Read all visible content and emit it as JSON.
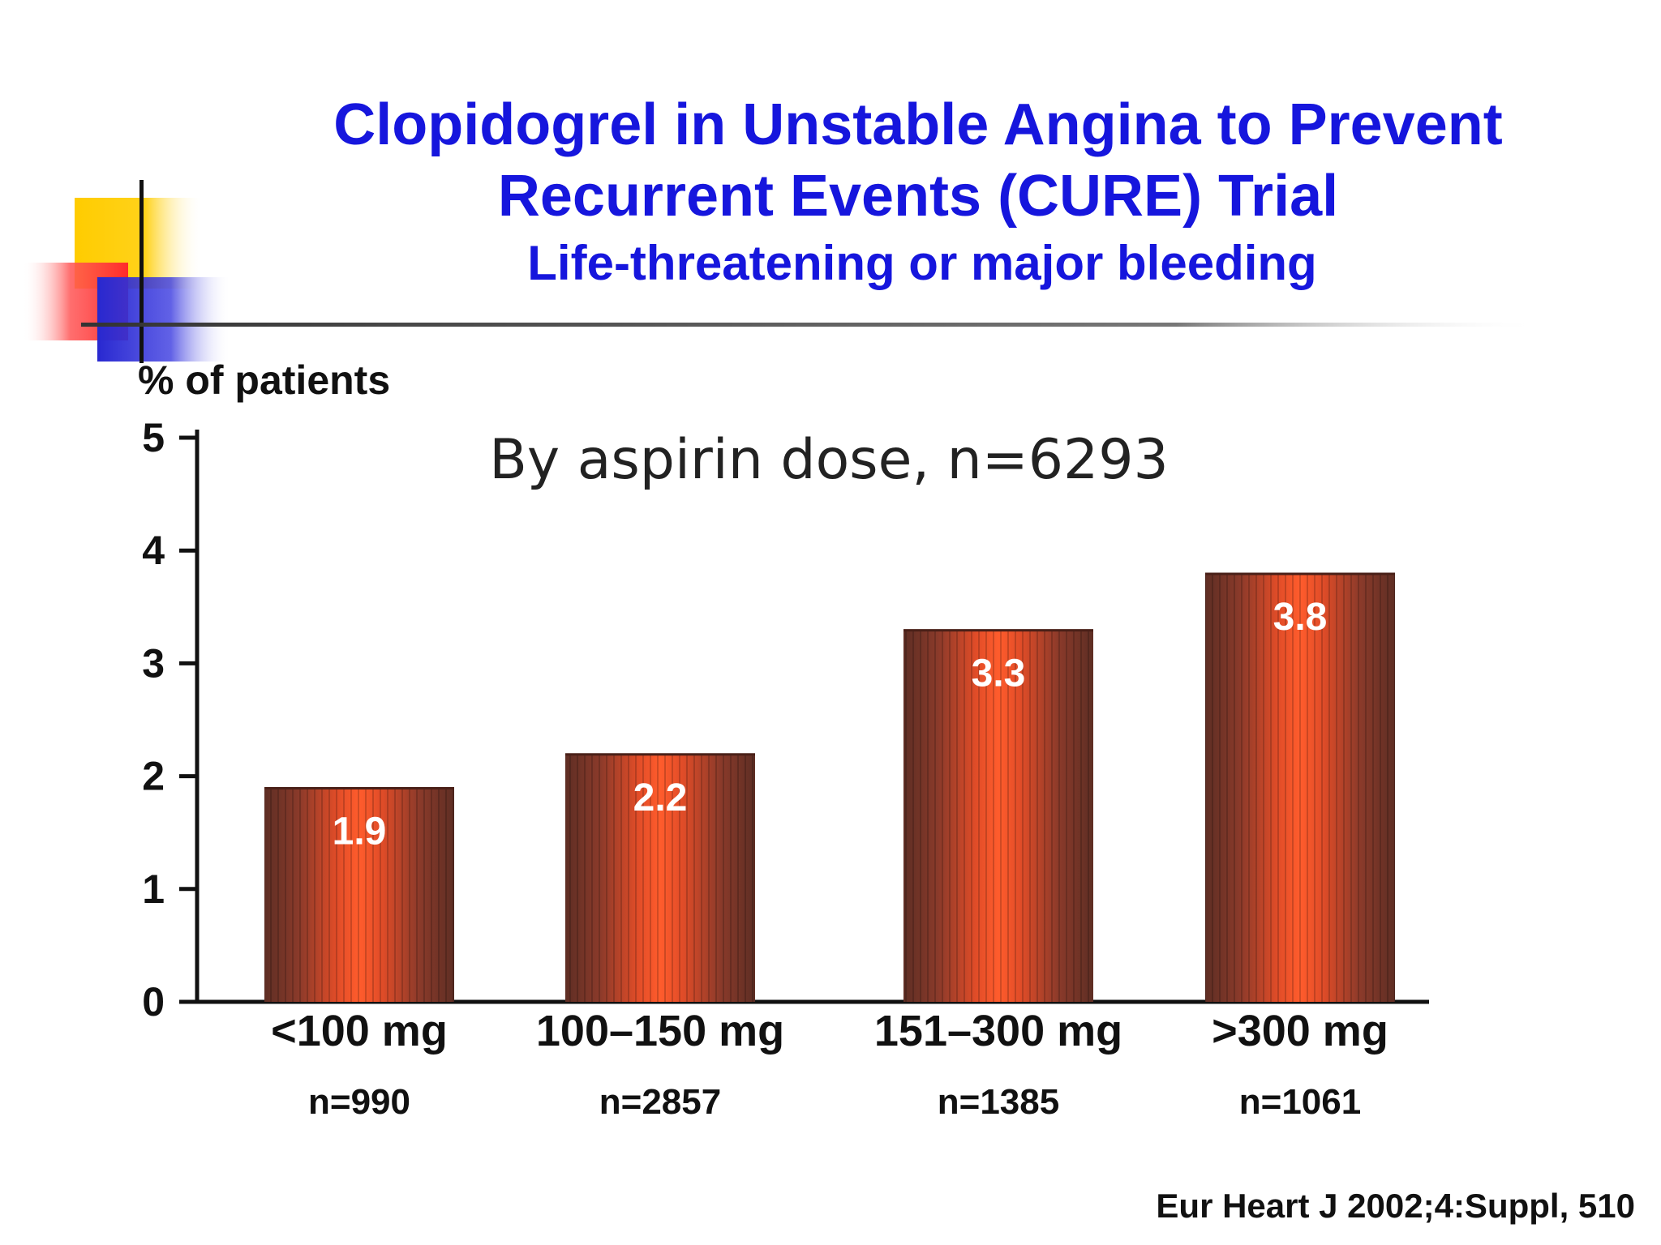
{
  "slide": {
    "title_line1": "Clopidogrel in Unstable Angina to Prevent",
    "title_line2": "Recurrent Events (CURE) Trial",
    "subtitle": "Life-threatening or major bleeding",
    "citation": "Eur Heart J 2002;4:Suppl, 510",
    "title_color": "#1616dd",
    "text_color": "#111111"
  },
  "chart_data": {
    "type": "bar",
    "title": "By aspirin dose, n=6293",
    "ylabel": "% of patients",
    "xlabel": "",
    "ylim": [
      0,
      5
    ],
    "yticks": [
      0,
      1,
      2,
      3,
      4,
      5
    ],
    "grid": false,
    "legend": "none",
    "categories": [
      "<100 mg",
      "100–150 mg",
      "151–300 mg",
      ">300 mg"
    ],
    "sample_sizes": [
      "n=990",
      "n=2857",
      "n=1385",
      "n=1061"
    ],
    "values": [
      1.9,
      2.2,
      3.3,
      3.8
    ],
    "data_labels": [
      "1.9",
      "2.2",
      "3.3",
      "3.8"
    ],
    "bar_colors": {
      "edge": "#6a3428",
      "center": "#ff5a2a",
      "mid": "#d8482a"
    }
  }
}
